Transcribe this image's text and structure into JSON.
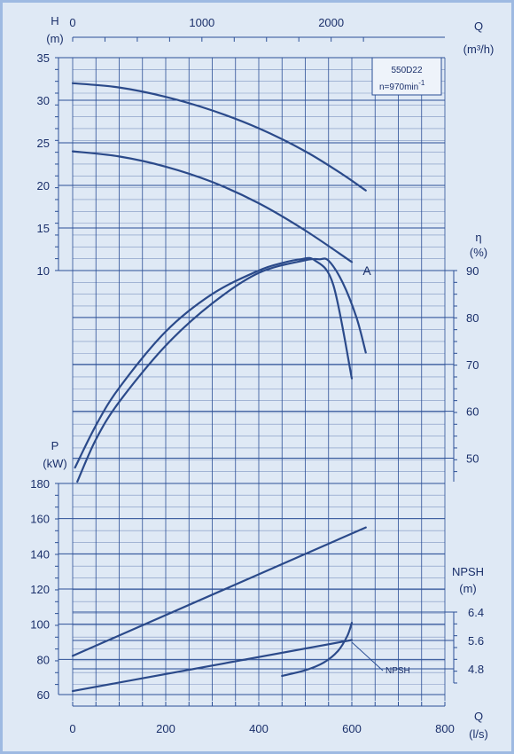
{
  "colors": {
    "background": "#dfe9f5",
    "frame": "#9ebae2",
    "grid": "#2b4f96",
    "curve": "#2b4a8a",
    "text": "#1a2f6a"
  },
  "chart_data": {
    "type": "line",
    "axes": {
      "q_ls": {
        "title": "Q",
        "unit": "(l/s)",
        "min": 0,
        "max": 800,
        "ticks": [
          "0",
          "200",
          "400",
          "600",
          "800"
        ]
      },
      "q_m3h": {
        "title": "Q",
        "unit": "(m³/h)",
        "ticks": [
          "0",
          "1000",
          "2000"
        ],
        "tick_values": [
          0,
          1000,
          2000
        ],
        "ls_per_unit": 0.27778
      },
      "head": {
        "title": "H",
        "unit": "(m)",
        "min": 10,
        "max": 35,
        "ticks": [
          "10",
          "15",
          "20",
          "25",
          "30",
          "35"
        ]
      },
      "efficiency": {
        "title": "η",
        "unit": "(%)",
        "min": 45,
        "max": 90,
        "ticks": [
          "50",
          "60",
          "70",
          "80",
          "90"
        ]
      },
      "power": {
        "title": "P",
        "unit": "(kW)",
        "min": 60,
        "max": 180,
        "ticks": [
          "60",
          "80",
          "100",
          "120",
          "140",
          "160",
          "180"
        ]
      },
      "npsh": {
        "title": "NPSH",
        "unit": "(m)",
        "min": 4.4,
        "max": 6.4,
        "ticks": [
          "4.8",
          "5.6",
          "6.4"
        ]
      }
    },
    "legend": {
      "line1": "550D22",
      "line2": "n=970min",
      "sup": "-1"
    },
    "annotations": {
      "curve_a": "A",
      "npsh": "NPSH"
    },
    "series": [
      {
        "axis": "head",
        "x": [
          0,
          100,
          200,
          300,
          400,
          500,
          580,
          630
        ],
        "y": [
          32.0,
          31.5,
          30.4,
          28.8,
          26.7,
          24.0,
          21.3,
          19.4
        ]
      },
      {
        "axis": "head",
        "x": [
          0,
          100,
          200,
          300,
          400,
          500,
          600
        ],
        "y": [
          24.0,
          23.4,
          22.2,
          20.4,
          17.9,
          14.7,
          11.0
        ]
      },
      {
        "axis": "efficiency",
        "x": [
          5,
          50,
          100,
          200,
          300,
          400,
          450,
          490,
          520,
          560,
          600
        ],
        "y": [
          48,
          57,
          65,
          77,
          85,
          90,
          91.6,
          92.4,
          92.2,
          87,
          67
        ]
      },
      {
        "axis": "efficiency",
        "x": [
          10,
          50,
          100,
          200,
          300,
          400,
          500,
          530,
          550,
          580,
          610,
          630
        ],
        "y": [
          45,
          54,
          62,
          74,
          83,
          89.5,
          92.2,
          92.4,
          92.1,
          87.5,
          80,
          72.5
        ]
      },
      {
        "axis": "power",
        "x": [
          0,
          630
        ],
        "y": [
          82,
          155
        ]
      },
      {
        "axis": "power",
        "x": [
          0,
          600
        ],
        "y": [
          62,
          91
        ]
      },
      {
        "axis": "npsh",
        "x": [
          450,
          500,
          540,
          570,
          590,
          600
        ],
        "y": [
          4.6,
          4.76,
          4.98,
          5.3,
          5.72,
          6.1
        ]
      }
    ]
  }
}
